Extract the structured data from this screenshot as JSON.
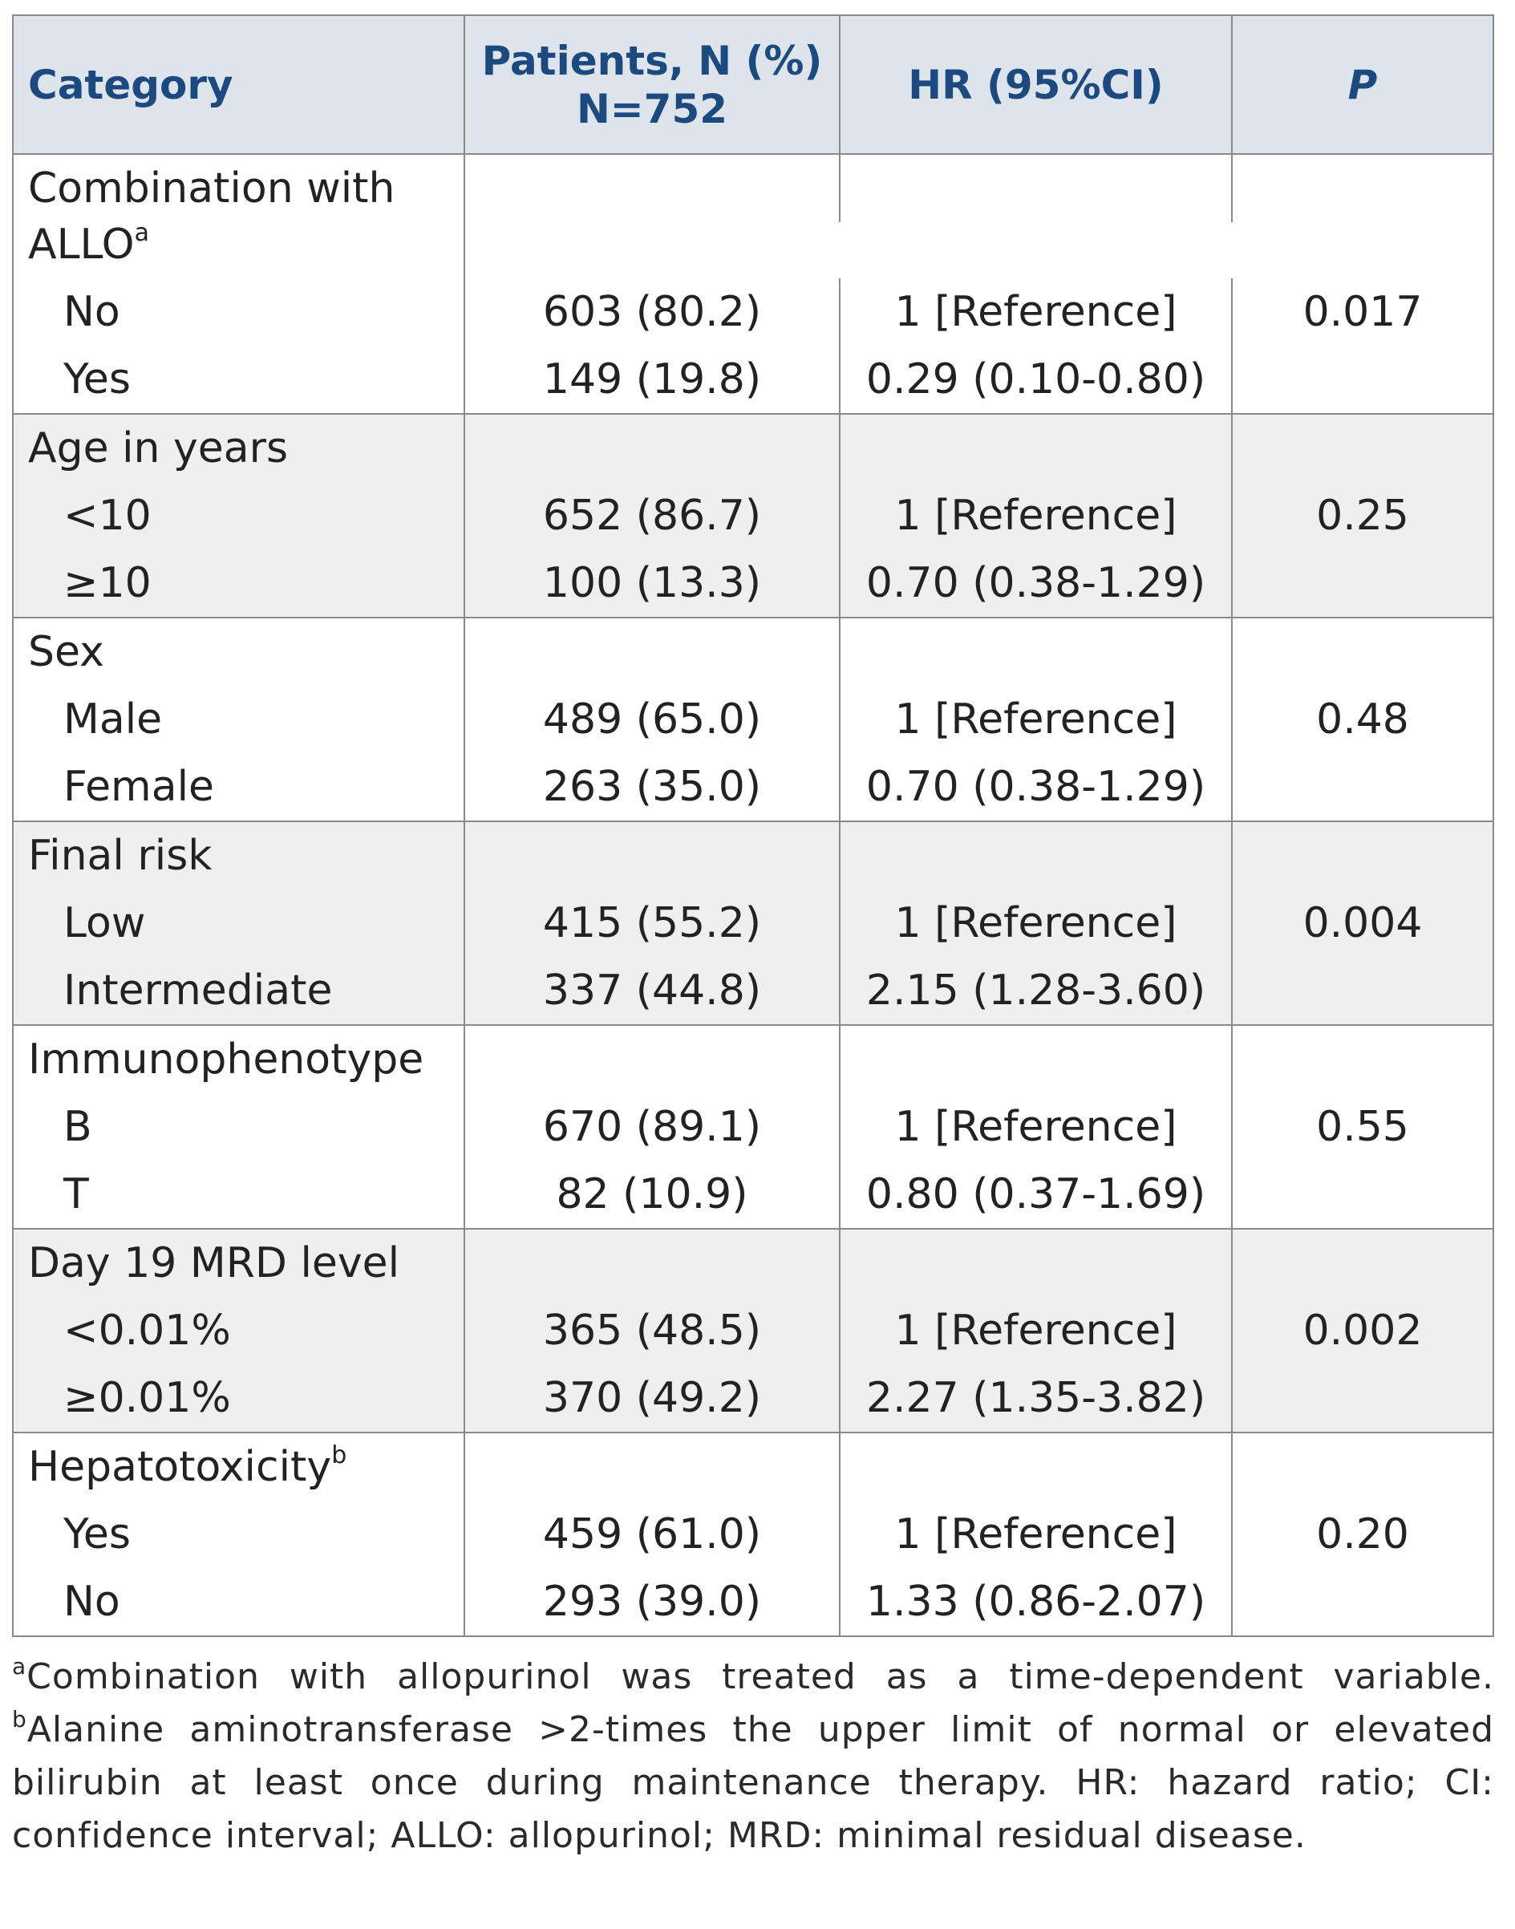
{
  "table": {
    "header": {
      "category": "Category",
      "patients": [
        "Patients, N (%)",
        "N=752"
      ],
      "hr": "HR (95%CI)",
      "p": "P"
    },
    "groups": [
      {
        "label": "Combination with ALLO",
        "sup": "a",
        "p": "0.017",
        "rows": [
          [
            "No",
            "603 (80.2)",
            "1 [Reference]"
          ],
          [
            "Yes",
            "149 (19.8)",
            "0.29 (0.10-0.80)"
          ]
        ]
      },
      {
        "label": "Age in years",
        "p": "0.25",
        "rows": [
          [
            "<10",
            "652 (86.7)",
            "1 [Reference]"
          ],
          [
            "≥10",
            "100 (13.3)",
            "0.70 (0.38-1.29)"
          ]
        ]
      },
      {
        "label": "Sex",
        "p": "0.48",
        "rows": [
          [
            "Male",
            "489 (65.0)",
            "1 [Reference]"
          ],
          [
            "Female",
            "263 (35.0)",
            "0.70 (0.38-1.29)"
          ]
        ]
      },
      {
        "label": "Final risk",
        "p": "0.004",
        "rows": [
          [
            "Low",
            "415 (55.2)",
            "1 [Reference]"
          ],
          [
            "Intermediate",
            "337 (44.8)",
            "2.15 (1.28-3.60)"
          ]
        ]
      },
      {
        "label": "Immunophenotype",
        "p": "0.55",
        "rows": [
          [
            "B",
            "670 (89.1)",
            "1 [Reference]"
          ],
          [
            "T",
            "82 (10.9)",
            "0.80 (0.37-1.69)"
          ]
        ]
      },
      {
        "label": "Day 19 MRD level",
        "p": "0.002",
        "rows": [
          [
            "<0.01%",
            "365 (48.5)",
            "1 [Reference]"
          ],
          [
            "≥0.01%",
            "370 (49.2)",
            "2.27 (1.35-3.82)"
          ]
        ]
      },
      {
        "label": "Hepatotoxicity",
        "sup": "b",
        "p": "0.20",
        "rows": [
          [
            "Yes",
            "459 (61.0)",
            "1 [Reference]"
          ],
          [
            "No",
            "293 (39.0)",
            "1.33 (0.86-2.07)"
          ]
        ]
      }
    ]
  },
  "footnote": [
    {
      "sup": "a"
    },
    {
      "text": "Combination with allopurinol was treated as a time-dependent variable. "
    },
    {
      "sup": "b"
    },
    {
      "text": "Alanine aminotransferase >2-times the upper limit of normal or elevated bilirubin at least once during maintenance therapy. HR: hazard ratio; CI: confidence interval; ALLO: allopurinol; MRD: minimal residual disease."
    }
  ]
}
